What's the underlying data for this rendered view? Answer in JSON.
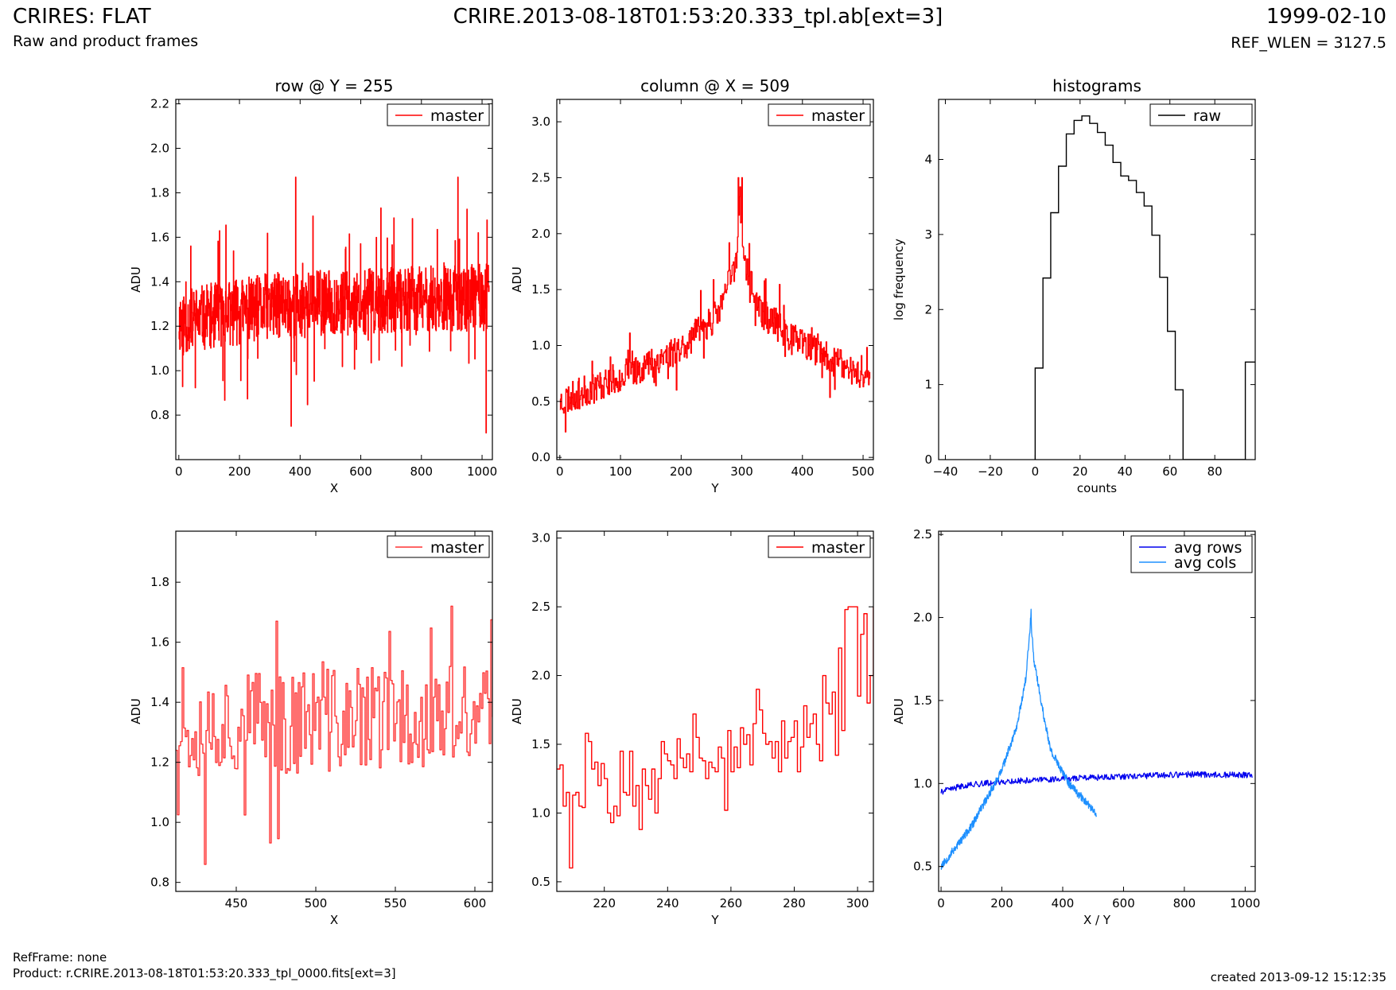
{
  "header": {
    "title": "CRIRES: FLAT",
    "subtitle": "Raw and product frames",
    "filename": "CRIRE.2013-08-18T01:53:20.333_tpl.ab[ext=3]",
    "date": "1999-02-10",
    "ref_wlen": "REF_WLEN = 3127.5"
  },
  "footer": {
    "refframe": "RefFrame: none",
    "product": "Product: r.CRIRE.2013-08-18T01:53:20.333_tpl_0000.fits[ext=3]",
    "created": "created 2013-09-12 15:12:35"
  },
  "colors": {
    "master": "#ff0000",
    "master_zoom": "#ff3333",
    "raw": "#000000",
    "avg_rows": "#0000ee",
    "avg_cols": "#1e90ff"
  },
  "chart_data": [
    {
      "id": "row",
      "type": "line",
      "title": "row @ Y = 255",
      "xlabel": "X",
      "ylabel": "ADU",
      "xlim": [
        -10,
        1034
      ],
      "ylim": [
        0.6,
        2.22
      ],
      "xticks": [
        0,
        200,
        400,
        600,
        800,
        1000
      ],
      "yticks": [
        0.8,
        1.0,
        1.2,
        1.4,
        1.6,
        1.8,
        2.0,
        2.2
      ],
      "legend": {
        "position": "top-right",
        "entries": [
          "master"
        ]
      },
      "series": [
        {
          "name": "master",
          "color": "#ff0000",
          "step": true,
          "noise": {
            "seed": 11,
            "n": 1024,
            "x0": 0,
            "x1": 1023,
            "amp": 0.15,
            "spike_prob": 0.06,
            "spike_amp": 0.33,
            "baseline": [
              [
                0,
                1.22
              ],
              [
                300,
                1.29
              ],
              [
                600,
                1.31
              ],
              [
                1023,
                1.33
              ]
            ],
            "clip": [
              0.72,
              1.87
            ]
          },
          "points": [
            [
              385,
              1.87
            ],
            [
              920,
              1.87
            ],
            [
              1013,
              0.72
            ],
            [
              370,
              0.75
            ]
          ]
        }
      ]
    },
    {
      "id": "col",
      "type": "line",
      "title": "column @ X = 509",
      "xlabel": "Y",
      "ylabel": "ADU",
      "xlim": [
        -5,
        517
      ],
      "ylim": [
        -0.02,
        3.2
      ],
      "xticks": [
        0,
        100,
        200,
        300,
        400,
        500
      ],
      "yticks": [
        0.0,
        0.5,
        1.0,
        1.5,
        2.0,
        2.5,
        3.0
      ],
      "legend": {
        "position": "top-right",
        "entries": [
          "master"
        ]
      },
      "series": [
        {
          "name": "master",
          "color": "#ff0000",
          "step": true,
          "noise": {
            "seed": 23,
            "n": 512,
            "x0": 0,
            "x1": 511,
            "amp": 0.14,
            "spike_prob": 0.05,
            "spike_amp": 0.3,
            "baseline": [
              [
                0,
                0.5
              ],
              [
                100,
                0.72
              ],
              [
                200,
                0.98
              ],
              [
                260,
                1.28
              ],
              [
                290,
                1.75
              ],
              [
                297,
                2.3
              ],
              [
                305,
                1.7
              ],
              [
                330,
                1.3
              ],
              [
                400,
                1.0
              ],
              [
                511,
                0.7
              ]
            ],
            "clip": [
              0.2,
              2.5
            ]
          },
          "points": [
            [
              294,
              2.5
            ],
            [
              300,
              2.5
            ]
          ]
        }
      ]
    },
    {
      "id": "hist",
      "type": "step",
      "title": "histograms",
      "xlabel": "counts",
      "ylabel": "log frequency",
      "xlim": [
        -43,
        98
      ],
      "ylim": [
        0,
        4.8
      ],
      "xticks": [
        -40,
        -20,
        0,
        20,
        40,
        60,
        80
      ],
      "yticks": [
        0,
        1,
        2,
        3,
        4
      ],
      "legend": {
        "position": "top-right",
        "entries": [
          "raw"
        ]
      },
      "series": [
        {
          "name": "raw",
          "color": "#000000",
          "edges": [
            0,
            3.47,
            6.93,
            10.4,
            13.87,
            17.33,
            20.8,
            24.27,
            27.73,
            31.2,
            34.67,
            38.13,
            41.6,
            45.07,
            48.53,
            52,
            55.47,
            58.93,
            62.4,
            65.87,
            69.33,
            72.8,
            76.27,
            79.73,
            83.2,
            86.67,
            90.13,
            93.6,
            97.07,
            100.53
          ],
          "values": [
            1.22,
            2.42,
            3.29,
            3.91,
            4.34,
            4.52,
            4.58,
            4.48,
            4.36,
            4.19,
            3.96,
            3.78,
            3.72,
            3.56,
            3.38,
            2.99,
            2.43,
            1.71,
            0.93,
            0,
            0,
            0,
            0,
            0,
            0,
            0,
            0,
            1.3,
            1.3
          ]
        }
      ]
    },
    {
      "id": "rowzoom",
      "type": "line",
      "title": "",
      "xlabel": "X",
      "ylabel": "ADU",
      "xlim": [
        412,
        611
      ],
      "ylim": [
        0.77,
        1.97
      ],
      "xticks": [
        450,
        500,
        550,
        600
      ],
      "yticks": [
        0.8,
        1.0,
        1.2,
        1.4,
        1.6,
        1.8
      ],
      "legend": {
        "position": "top-right",
        "entries": [
          "master"
        ]
      },
      "series": [
        {
          "name": "master",
          "color": "#ff3333",
          "step": true,
          "noise": {
            "seed": 37,
            "n": 200,
            "x0": 412,
            "x1": 611,
            "amp": 0.18,
            "spike_prob": 0.08,
            "spike_amp": 0.28,
            "baseline": [
              [
                412,
                1.33
              ],
              [
                611,
                1.35
              ]
            ],
            "clip": [
              0.86,
              1.72
            ]
          },
          "points": [
            [
              430,
              0.86
            ],
            [
              475,
              1.67
            ],
            [
              585,
              1.72
            ]
          ]
        }
      ]
    },
    {
      "id": "colzoom",
      "type": "line",
      "title": "",
      "xlabel": "Y",
      "ylabel": "ADU",
      "xlim": [
        205,
        305
      ],
      "ylim": [
        0.43,
        3.05
      ],
      "xticks": [
        220,
        240,
        260,
        280,
        300
      ],
      "yticks": [
        0.5,
        1.0,
        1.5,
        2.0,
        2.5,
        3.0
      ],
      "legend": {
        "position": "top-right",
        "entries": [
          "master"
        ]
      },
      "series": [
        {
          "name": "master",
          "color": "#ff0000",
          "step": true,
          "values_x0": 205,
          "values": [
            1.32,
            1.35,
            1.05,
            1.15,
            0.6,
            1.13,
            1.15,
            1.05,
            1.04,
            1.58,
            1.52,
            1.32,
            1.37,
            1.2,
            1.36,
            1.25,
            1.0,
            0.93,
            1.05,
            0.98,
            1.45,
            1.15,
            1.13,
            1.45,
            1.05,
            1.2,
            0.88,
            1.32,
            1.2,
            1.1,
            1.32,
            1.0,
            1.25,
            1.52,
            1.43,
            1.38,
            1.35,
            1.25,
            1.54,
            1.4,
            1.33,
            1.43,
            1.3,
            1.72,
            1.55,
            1.4,
            1.38,
            1.25,
            1.37,
            1.33,
            1.3,
            1.48,
            1.4,
            1.02,
            1.6,
            1.3,
            1.48,
            1.33,
            1.62,
            1.5,
            1.57,
            1.35,
            1.65,
            1.9,
            1.75,
            1.58,
            1.5,
            1.52,
            1.4,
            1.52,
            1.3,
            1.67,
            1.4,
            1.52,
            1.55,
            1.67,
            1.3,
            1.48,
            1.78,
            1.55,
            1.65,
            1.72,
            1.5,
            1.38,
            2.0,
            1.8,
            1.72,
            1.88,
            1.42,
            2.2,
            1.6,
            2.48,
            2.5,
            2.5,
            2.5,
            1.85,
            2.3,
            2.45,
            1.8,
            2.0,
            2.5
          ]
        }
      ]
    },
    {
      "id": "avg",
      "type": "line",
      "title": "",
      "xlabel": "X / Y",
      "ylabel": "ADU",
      "xlim": [
        -8,
        1033
      ],
      "ylim": [
        0.35,
        2.52
      ],
      "xticks": [
        0,
        200,
        400,
        600,
        800,
        1000
      ],
      "yticks": [
        0.5,
        1.0,
        1.5,
        2.0,
        2.5
      ],
      "legend": {
        "position": "top-right",
        "entries": [
          "avg rows",
          "avg cols"
        ]
      },
      "series": [
        {
          "name": "avg rows",
          "color": "#0000ee",
          "step": false,
          "noise": {
            "seed": 41,
            "n": 520,
            "x0": 0,
            "x1": 1023,
            "amp": 0.018,
            "spike_prob": 0.0,
            "spike_amp": 0,
            "baseline": [
              [
                0,
                0.95
              ],
              [
                80,
                0.99
              ],
              [
                200,
                1.01
              ],
              [
                400,
                1.03
              ],
              [
                600,
                1.04
              ],
              [
                800,
                1.055
              ],
              [
                1023,
                1.05
              ]
            ],
            "clip": [
              0.88,
              1.12
            ]
          }
        },
        {
          "name": "avg cols",
          "color": "#1e90ff",
          "step": false,
          "noise": {
            "seed": 53,
            "n": 512,
            "x0": 0,
            "x1": 511,
            "amp": 0.025,
            "spike_prob": 0.0,
            "spike_amp": 0,
            "baseline": [
              [
                0,
                0.5
              ],
              [
                100,
                0.74
              ],
              [
                200,
                1.08
              ],
              [
                250,
                1.35
              ],
              [
                280,
                1.65
              ],
              [
                295,
                2.0
              ],
              [
                305,
                1.75
              ],
              [
                330,
                1.48
              ],
              [
                360,
                1.2
              ],
              [
                420,
                1.0
              ],
              [
                511,
                0.82
              ]
            ],
            "clip": [
              0.45,
              2.05
            ]
          },
          "points": [
            [
              296,
              2.05
            ]
          ]
        }
      ]
    }
  ]
}
